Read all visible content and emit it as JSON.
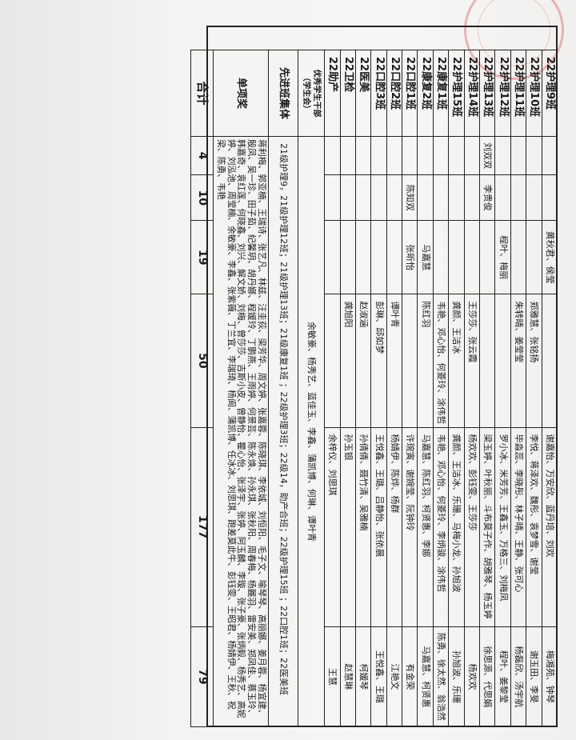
{
  "rows": [
    {
      "name": "22护理9班",
      "c1": "",
      "c2": "",
      "c3": "黄秋君、侯莹",
      "c4": "",
      "c5": "谢嘉怡、万安欣、蓝丹培、刘欢",
      "c6": "梅湘苑、钟琴"
    },
    {
      "name": "22护理10班",
      "c1": "",
      "c2": "",
      "c3": "",
      "c4": "郑雅慧、张铭扬",
      "c5": "李悦、蒋泽欢、魏彤、袁梦雪、谢莹",
      "c6": "谢玉田、李旻"
    },
    {
      "name": "22护理11班",
      "c1": "",
      "c2": "",
      "c3": "",
      "c4": "朱转晴、姜莹莹",
      "c5": "毕淼蕊、李晓彤、林子晴、王静、张可心",
      "c6": "杨磊欣、汤宇航"
    },
    {
      "name": "22护理12班",
      "c1": "",
      "c2": "",
      "c3": "程叶、梅丽",
      "c4": "",
      "c5": "罗小冰、米芳芳、王鑫玉、万格三、刘梅凤",
      "c6": "程叶、姜黎莹"
    },
    {
      "name": "22护理13班",
      "c1": "刘双双",
      "c2": "李贵俊",
      "c3": "",
      "c4": "",
      "c5": "梁玉婷、叶秋丽、斗布莫子作、胡雅琴、杨玉婷",
      "c6": "徐思源、代思娟"
    },
    {
      "name": "22护理14班",
      "c1": "",
      "c2": "",
      "c3": "",
      "c4": "王莎莎、张云霞",
      "c5": "杨欢欢、彭钰雯、王莎莎",
      "c6": "杨欢欢"
    },
    {
      "name": "22护理15班",
      "c1": "",
      "c2": "",
      "c3": "",
      "c4": "龚颜、王洁冰",
      "c5": "龚颜、王洁冰、乐珊、马梅小龙、孙旭波",
      "c6": "孙旭波、乐珊"
    },
    {
      "name": "22康复1班",
      "c1": "",
      "c2": "",
      "c3": "",
      "c4": "韦艳、邓心怡、何菱玲、涂伟哲",
      "c5": "韦艳、邓心怡、何菱玲、李炳骏、涂伟哲",
      "c6": "陈勇、徐太然、翁浩然"
    },
    {
      "name": "22康复2班",
      "c1": "",
      "c2": "",
      "c3": "马嘉慧",
      "c4": "陈红羽",
      "c5": "马嘉慧、陈红羽、柯贤惠、李娜",
      "c6": "马嘉慧、柯贤惠"
    },
    {
      "name": "22口腔1班",
      "c1": "",
      "c2": "陈知双",
      "c3": "张昕怡",
      "c4": "",
      "c5": "许琬寅、谢婉莹、阮钟玲",
      "c6": "有金荣"
    },
    {
      "name": "22口腔2班",
      "c1": "",
      "c2": "",
      "c3": "",
      "c4": "谭叶青",
      "c5": "杨婧伊、陈烨、杨群",
      "c6": "江艳文"
    },
    {
      "name": "22口腔3班",
      "c1": "",
      "c2": "",
      "c3": "",
      "c4": "彭琳、邱如梦",
      "c5": "王悦鑫、王璐、吕静怡、张依晨",
      "c6": "王悦鑫、王璐"
    },
    {
      "name": "22医美",
      "c1": "",
      "c2": "",
      "c3": "",
      "c4": "赵淑涵",
      "c5": "孙倩倩、聂竹清、吴雅楠",
      "c6": "柯媛琴"
    },
    {
      "name": "22卫检",
      "c1": "",
      "c2": "",
      "c3": "",
      "c4": "龚旭阳",
      "c5": "孙玉银",
      "c6": "赵慧琳"
    },
    {
      "name": "22助产",
      "c1": "",
      "c2": "",
      "c3": "",
      "c4": "",
      "c5": "余梓仪、刘思琪",
      "c6": "王慧"
    }
  ],
  "excellent": {
    "name_line1": "优秀学生干部",
    "name_line2": "（学生会）",
    "text": "余敏豪、杨秀艺、蓝佳玉、李鑫、蒲凯博、何琳、谭叶青"
  },
  "advanced": {
    "name": "先进班集体",
    "text": "21级护理9，21级护理12班；21级护理13班；21级康复1班 ；22级护理3班；22级14，助产合班；22级护理15班 ；22口腔1班；22医美班"
  },
  "single": {
    "name": "单项奖",
    "text": "蒋利梅、郭亚楠、王瑞诗、张艺凡、林兹、汪圭荻、梁芳华、周文婷、张嘉蓉、陈晓琪、李依城、刘恒阳、毛子文、喻琴琴、高丽娜、姜月蓉、杨宜建、殷凤、吴一珍、田子茹、纪馨玥、胡丹娜、程媛玲、丁鹏燕、王雨婷、何景芸、陈永焕、孙永琪、张秋阳、周春梅、杨麗羽、雷安美、郑凤佳、蔡玉玲、韩嘉奇、袁红莲、何晓鑫、刘兴、解文娇、刘梅、曾莎莎、吉斯小皮、曾静怡、瞿心怡、张泽宇、张婷、阿玉麟、李璇、张子豪、张炳毅、杨秀艺、高妮婷、刘泓池、周莹楠、余敏豪、李鑫、张紫薇、丁兰宜、李瑞琦、杨阆、蒲凯博、任冰冰、刘思琪、跑差莫此牛、彭钰雯、王昭君、杨婧伊、王秋、祝梁、陈勇、韦艳"
  },
  "total": {
    "name": "合计",
    "values": [
      "4",
      "10",
      "19",
      "50",
      "177",
      "79"
    ]
  },
  "colors": {
    "stamp": "#d23c46",
    "ink": "#1a1a1a"
  }
}
